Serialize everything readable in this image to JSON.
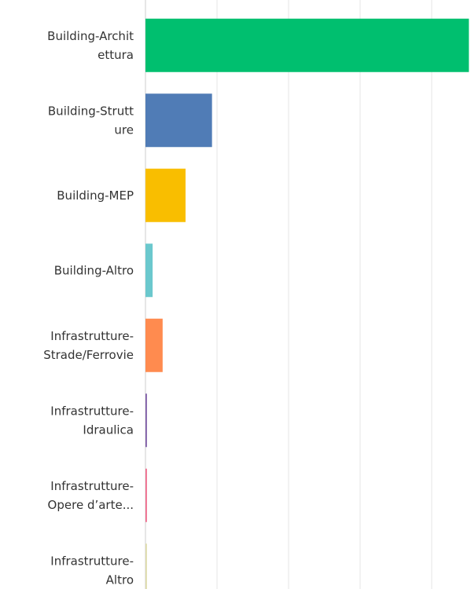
{
  "chart_data": {
    "type": "bar",
    "orientation": "horizontal",
    "categories": [
      "Building-Architettura",
      "Building-Strutture",
      "Building-MEP",
      "Building-Altro",
      "Infrastrutture-Strade/Ferrovie",
      "Infrastrutture-Idraulica",
      "Infrastrutture-Opere d’arte...",
      "Infrastrutture-Altro"
    ],
    "values": [
      45.2,
      9.3,
      5.6,
      1.0,
      2.4,
      0.2,
      0.2,
      0.2
    ],
    "colors": [
      "#00bf6f",
      "#507cb6",
      "#f9be00",
      "#6bc8cd",
      "#ff8b4f",
      "#7d5ba6",
      "#ef6a8c",
      "#dedbaa"
    ],
    "xlim": [
      0,
      45.5
    ],
    "xticks": [
      0,
      10,
      20,
      30,
      40
    ],
    "grid": true
  }
}
